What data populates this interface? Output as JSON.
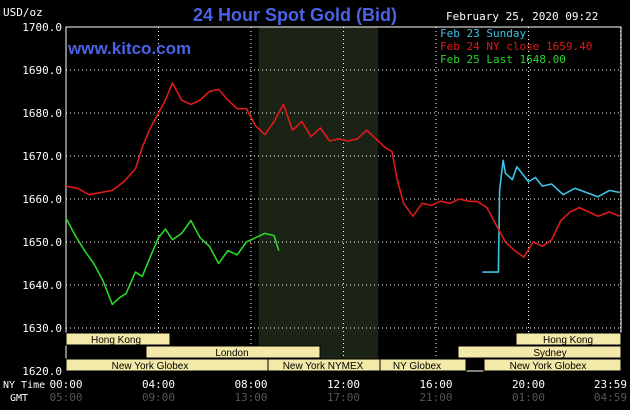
{
  "header": {
    "unit_label": "USD/oz",
    "title": "24 Hour Spot Gold (Bid)",
    "timestamp": "February 25, 2020 09:22",
    "watermark": "www.kitco.com"
  },
  "colors": {
    "background": "#000000",
    "grid": "#ffffff",
    "title": "#4a63e6",
    "sunday": "#3cc3e6",
    "ny_close": "#e01a1a",
    "last": "#2ad62a",
    "session_fill": "#f3e9a8",
    "nymex_shade": "#1a2316"
  },
  "axis": {
    "time_labels": [
      "NY Time",
      "GMT"
    ],
    "x_ny": [
      "00:00",
      "04:00",
      "08:00",
      "12:00",
      "16:00",
      "20:00",
      "23:59"
    ],
    "x_gmt": [
      "05:00",
      "09:00",
      "13:00",
      "17:00",
      "21:00",
      "01:00",
      "04:59"
    ],
    "y_ticks": [
      "1620.0",
      "1630.0",
      "1640.0",
      "1650.0",
      "1660.0",
      "1670.0",
      "1680.0",
      "1690.0",
      "1700.0"
    ]
  },
  "sessions": {
    "hong_kong_left": "Hong Kong",
    "london": "London",
    "new_york_globex_left": "New York Globex",
    "new_york_nymex": "New York NYMEX",
    "ny_globex": "NY Globex",
    "hong_kong_right": "Hong Kong",
    "sydney": "Sydney",
    "new_york_globex_right": "New York Globex"
  },
  "chart_data": {
    "type": "line",
    "title": "24 Hour Spot Gold (Bid)",
    "ylabel": "USD/oz",
    "ylim": [
      1620,
      1700
    ],
    "xlim": [
      0,
      24
    ],
    "grid": true,
    "legend_position": "top-right",
    "x_unit": "hours (NY time)",
    "series": [
      {
        "name": "Feb 23 Sunday",
        "legend": "Feb 23 Sunday",
        "color": "#3cc3e6",
        "x": [
          18.0,
          18.7,
          18.75,
          18.9,
          19.0,
          19.3,
          19.5,
          20.0,
          20.3,
          20.6,
          21.0,
          21.5,
          22.0,
          22.5,
          23.0,
          23.5,
          23.95
        ],
        "y": [
          1643.0,
          1643.0,
          1662.0,
          1669.0,
          1666.0,
          1664.5,
          1667.5,
          1664.0,
          1665.0,
          1663.0,
          1663.5,
          1661.0,
          1662.5,
          1661.5,
          1660.5,
          1662.0,
          1661.5
        ]
      },
      {
        "name": "Feb 24 NY close 1659.40",
        "legend": "Feb 24 NY close 1659.40",
        "color": "#e01a1a",
        "x": [
          0.0,
          0.5,
          1.0,
          1.5,
          2.0,
          2.5,
          3.0,
          3.3,
          3.6,
          4.0,
          4.3,
          4.6,
          5.0,
          5.4,
          5.8,
          6.2,
          6.6,
          7.0,
          7.4,
          7.8,
          8.2,
          8.6,
          9.0,
          9.4,
          9.8,
          10.2,
          10.6,
          11.0,
          11.4,
          11.8,
          12.2,
          12.6,
          13.0,
          13.4,
          13.8,
          14.1,
          14.3,
          14.6,
          15.0,
          15.4,
          15.8,
          16.2,
          16.6,
          17.0,
          17.4,
          17.8,
          18.2,
          18.6,
          19.0,
          19.4,
          19.8,
          20.2,
          20.6,
          21.0,
          21.4,
          21.8,
          22.2,
          22.6,
          23.0,
          23.5,
          23.95
        ],
        "y": [
          1663.0,
          1662.5,
          1661.0,
          1661.5,
          1662.0,
          1664.0,
          1667.0,
          1672.0,
          1676.0,
          1680.0,
          1683.0,
          1687.0,
          1683.0,
          1682.0,
          1683.0,
          1685.0,
          1685.5,
          1683.0,
          1681.0,
          1681.0,
          1677.0,
          1675.0,
          1678.0,
          1682.0,
          1676.0,
          1678.0,
          1674.5,
          1676.5,
          1673.5,
          1674.0,
          1673.5,
          1674.0,
          1676.0,
          1674.0,
          1672.0,
          1671.0,
          1665.0,
          1659.0,
          1656.0,
          1659.0,
          1658.5,
          1659.5,
          1659.0,
          1660.0,
          1659.5,
          1659.4,
          1658.0,
          1654.0,
          1650.0,
          1648.0,
          1646.5,
          1650.0,
          1649.0,
          1650.5,
          1655.0,
          1657.0,
          1658.0,
          1657.0,
          1656.0,
          1657.0,
          1656.0
        ]
      },
      {
        "name": "Feb 25 Last 1648.00",
        "legend": "Feb 25 Last 1648.00",
        "color": "#2ad62a",
        "x": [
          0.0,
          0.4,
          0.8,
          1.2,
          1.6,
          2.0,
          2.3,
          2.6,
          3.0,
          3.3,
          3.6,
          4.0,
          4.3,
          4.6,
          5.0,
          5.4,
          5.8,
          6.2,
          6.6,
          7.0,
          7.4,
          7.8,
          8.2,
          8.6,
          9.0,
          9.2
        ],
        "y": [
          1655.5,
          1651.5,
          1648.0,
          1645.0,
          1641.0,
          1635.5,
          1637.0,
          1638.0,
          1643.0,
          1642.0,
          1646.0,
          1651.0,
          1653.0,
          1650.5,
          1652.0,
          1655.0,
          1651.0,
          1649.0,
          1645.0,
          1648.0,
          1647.0,
          1650.0,
          1651.0,
          1652.0,
          1651.5,
          1648.0
        ]
      }
    ]
  }
}
